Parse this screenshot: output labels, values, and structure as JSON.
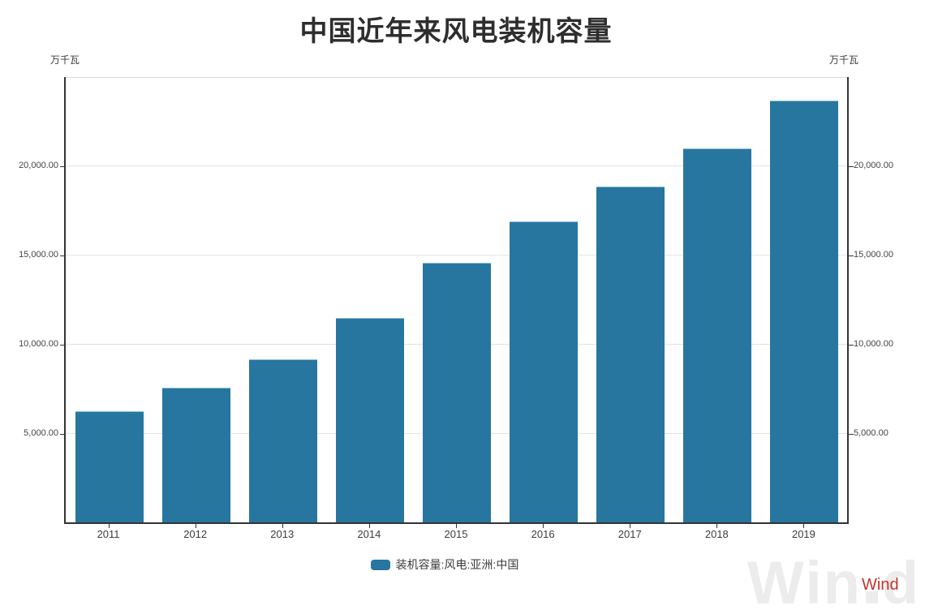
{
  "title": "中国近年来风电装机容量",
  "y_axis": {
    "unit_left": "万千瓦",
    "unit_right": "万千瓦",
    "tick_values": [
      5000,
      10000,
      15000,
      20000
    ],
    "tick_labels": [
      "5,000.00",
      "10,000.00",
      "15,000.00",
      "20,000.00"
    ]
  },
  "legend": {
    "label": "装机容量:风电:亚洲:中国",
    "swatch_color": "#2776a0"
  },
  "branding": {
    "watermark_logo_left": "Win",
    "watermark_logo_right": "d",
    "watermark_color": "#ececec",
    "brand_text": "Wind",
    "brand_color": "#c63328"
  },
  "colors": {
    "bar": "#2776a0",
    "axis": "#333333",
    "gridline": "#e3e3e3",
    "title_text": "#2e2e2e",
    "tick_text": "#444444"
  },
  "chart_data": {
    "type": "bar",
    "title": "中国近年来风电装机容量",
    "categories": [
      "2011",
      "2012",
      "2013",
      "2014",
      "2015",
      "2016",
      "2017",
      "2018",
      "2019"
    ],
    "series": [
      {
        "name": "装机容量:风电:亚洲:中国",
        "values": [
          6236,
          7532,
          9141,
          11460,
          14536,
          16873,
          18839,
          20953,
          23628
        ]
      }
    ],
    "xlabel": "",
    "ylabel": "万千瓦",
    "ylim": [
      0,
      25000
    ],
    "yticks": [
      5000,
      10000,
      15000,
      20000
    ],
    "ytick_format": "thousands with two decimals",
    "grid": true,
    "legend_position": "bottom",
    "bar_color": "#2776a0"
  }
}
